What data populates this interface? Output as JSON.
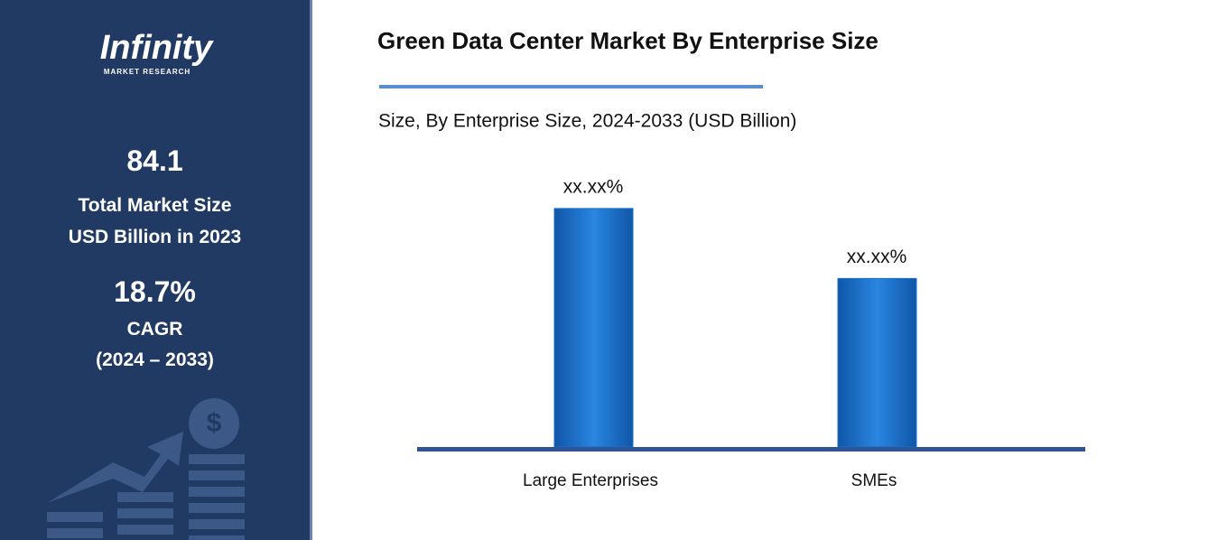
{
  "sidebar": {
    "logo": "Infinity",
    "logo_sub": "MARKET RESEARCH",
    "market_size": "84.1",
    "market_size_label_1": "Total Market Size",
    "market_size_label_2": "USD Billion in 2023",
    "cagr": "18.7%",
    "cagr_label": "CAGR",
    "cagr_period": "(2024 – 2033)"
  },
  "chart_data": {
    "type": "bar",
    "title": "Green Data Center Market By Enterprise Size",
    "subtitle": "Size, By Enterprise Size, 2024-2033 (USD Billion)",
    "categories": [
      "Large Enterprises",
      "SMEs"
    ],
    "values": [
      58.6,
      41.4
    ],
    "value_labels": [
      "xx.xx%",
      "xx.xx%"
    ],
    "color": "#1a6fce",
    "ylim": [
      0,
      65
    ]
  }
}
